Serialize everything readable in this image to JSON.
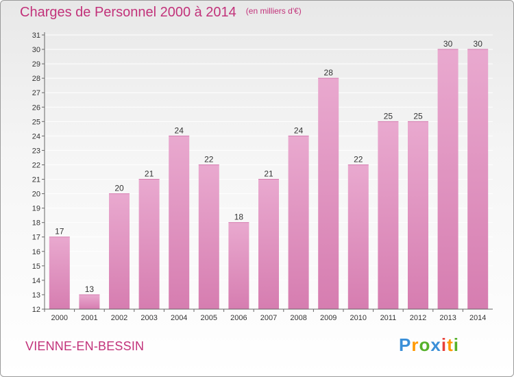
{
  "title": "Charges de Personnel 2000 à 2014",
  "unit": "(en milliers d'€)",
  "commune": "VIENNE-EN-BESSIN",
  "logo": {
    "text": "Proxiti",
    "letters": [
      "P",
      "r",
      "o",
      "x",
      "i",
      "t",
      "i"
    ],
    "colors": [
      "#3a8fd8",
      "#ff9900",
      "#55b12a",
      "#3a8fd8",
      "#e8403a",
      "#ff9900",
      "#55b12a"
    ]
  },
  "colors": {
    "bar": "#d67db0",
    "bar_light": "#e9a9cf",
    "title": "#c2327a",
    "grid": "#ffffff"
  },
  "chart_data": {
    "type": "bar",
    "title": "Charges de Personnel 2000 à 2014",
    "subtitle": "(en milliers d'€)",
    "categories": [
      "2000",
      "2001",
      "2002",
      "2003",
      "2004",
      "2005",
      "2006",
      "2007",
      "2008",
      "2009",
      "2010",
      "2011",
      "2012",
      "2013",
      "2014"
    ],
    "values": [
      17,
      13,
      20,
      21,
      24,
      22,
      18,
      21,
      24,
      28,
      22,
      25,
      25,
      30,
      30
    ],
    "ylim": [
      12,
      31
    ],
    "yticks": [
      "12",
      "13",
      "14",
      "15",
      "16",
      "17",
      "18",
      "19",
      "20",
      "21",
      "22",
      "23",
      "24",
      "25",
      "26",
      "27",
      "28",
      "29",
      "30",
      "31"
    ],
    "grid": true,
    "data_labels": true
  }
}
